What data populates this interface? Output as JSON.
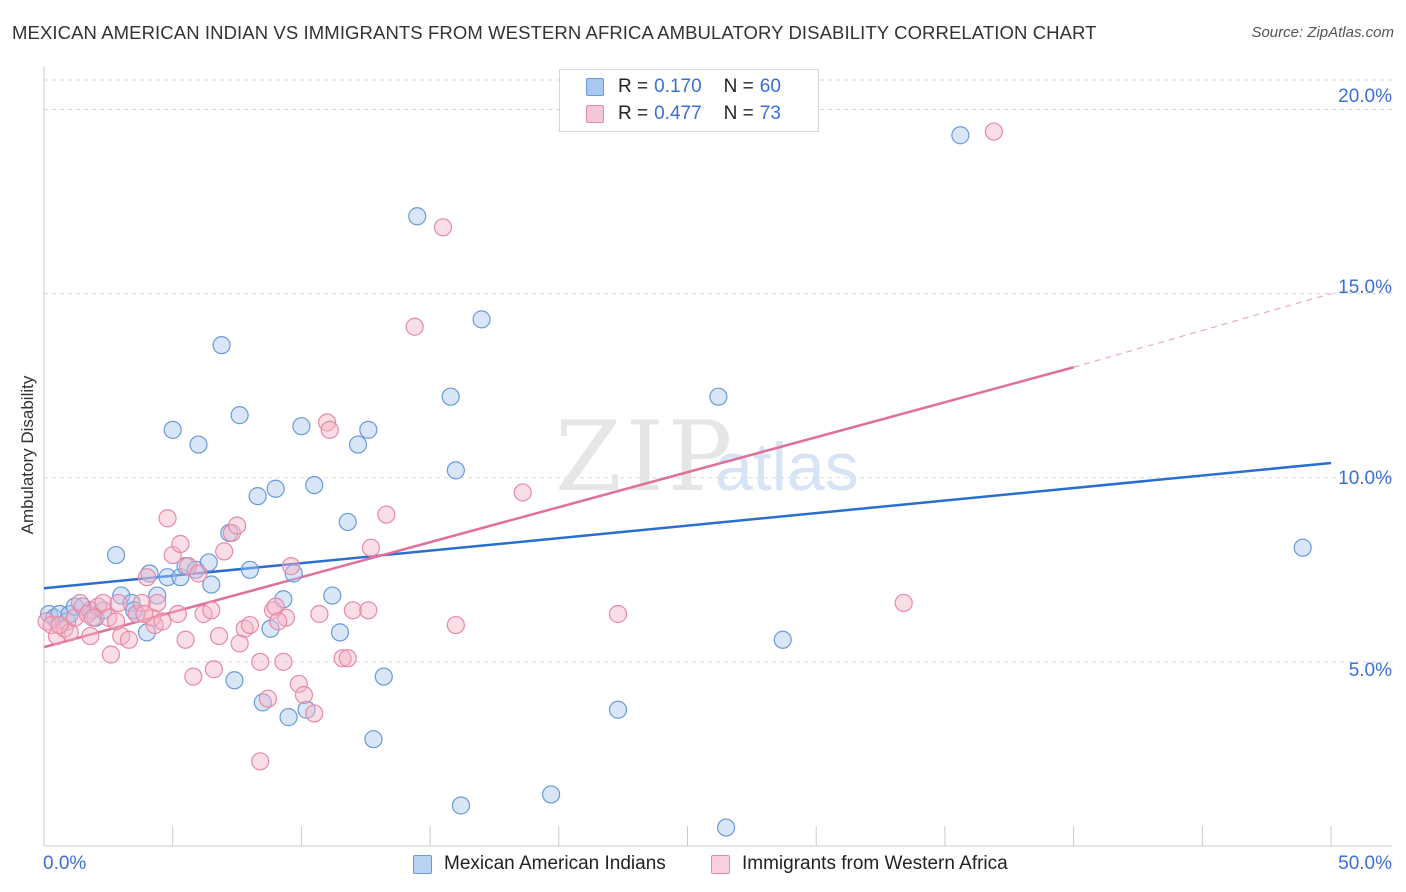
{
  "title": "MEXICAN AMERICAN INDIAN VS IMMIGRANTS FROM WESTERN AFRICA AMBULATORY DISABILITY CORRELATION CHART",
  "source": "Source: ZipAtlas.com",
  "watermark": {
    "zip": "ZIP",
    "atlas": "atlas"
  },
  "legend": {
    "rows": [
      {
        "r_label": "R =",
        "r_value": "0.170",
        "n_label": "N =",
        "n_value": "60"
      },
      {
        "r_label": "R =",
        "r_value": "0.477",
        "n_label": "N =",
        "n_value": "73"
      }
    ]
  },
  "colors": {
    "blue_fill": "#a8c8f0",
    "blue_stroke": "#6a9ad8",
    "blue_line": "#2a6fd0",
    "pink_fill": "#f5b6c8",
    "pink_stroke": "#e889a6",
    "pink_line": "#e0709a",
    "grid": "#d8d8d8",
    "tick_text": "#3b6fd4"
  },
  "chart_data": {
    "type": "scatter",
    "title": "MEXICAN AMERICAN INDIAN VS IMMIGRANTS FROM WESTERN AFRICA AMBULATORY DISABILITY CORRELATION CHART",
    "xlabel": "",
    "ylabel": "Ambulatory Disability",
    "xlim": [
      0,
      50
    ],
    "ylim": [
      0,
      20.8
    ],
    "x_tick_labels": [
      {
        "value": 0,
        "label": "0.0%"
      },
      {
        "value": 50,
        "label": "50.0%"
      }
    ],
    "y_ticks": [
      {
        "value": 5,
        "label": "5.0%"
      },
      {
        "value": 10,
        "label": "10.0%"
      },
      {
        "value": 15,
        "label": "15.0%"
      },
      {
        "value": 20,
        "label": "20.0%"
      }
    ],
    "x_minor_ticks": [
      0,
      5,
      10,
      15,
      20,
      25,
      30,
      35,
      40,
      45,
      50
    ],
    "grid": true,
    "legend_position": "top-center",
    "series": [
      {
        "name": "Mexican American Indians",
        "color": "blue",
        "r": 0.17,
        "n": 60,
        "trend": {
          "x0": 0,
          "y0": 7.0,
          "x1": 50,
          "y1": 10.4,
          "dashed_from": null
        },
        "points": [
          [
            0.2,
            6.3
          ],
          [
            0.4,
            6.2
          ],
          [
            0.6,
            6.3
          ],
          [
            0.9,
            6.1
          ],
          [
            1.0,
            6.3
          ],
          [
            1.2,
            6.5
          ],
          [
            1.8,
            6.4
          ],
          [
            2.0,
            6.2
          ],
          [
            2.3,
            6.4
          ],
          [
            2.8,
            7.9
          ],
          [
            3.0,
            6.8
          ],
          [
            3.4,
            6.6
          ],
          [
            3.6,
            6.3
          ],
          [
            4.0,
            5.8
          ],
          [
            4.1,
            7.4
          ],
          [
            4.4,
            6.8
          ],
          [
            4.8,
            7.3
          ],
          [
            5.0,
            11.3
          ],
          [
            5.3,
            7.3
          ],
          [
            5.5,
            7.6
          ],
          [
            5.9,
            7.5
          ],
          [
            6.0,
            10.9
          ],
          [
            6.4,
            7.7
          ],
          [
            6.5,
            7.1
          ],
          [
            6.9,
            13.6
          ],
          [
            7.2,
            8.5
          ],
          [
            7.4,
            4.5
          ],
          [
            7.6,
            11.7
          ],
          [
            8.0,
            7.5
          ],
          [
            8.3,
            9.5
          ],
          [
            8.5,
            3.9
          ],
          [
            8.8,
            5.9
          ],
          [
            9.0,
            9.7
          ],
          [
            9.3,
            6.7
          ],
          [
            9.5,
            3.5
          ],
          [
            9.7,
            7.4
          ],
          [
            10.0,
            11.4
          ],
          [
            10.2,
            3.7
          ],
          [
            10.5,
            9.8
          ],
          [
            11.2,
            6.8
          ],
          [
            11.5,
            5.8
          ],
          [
            11.8,
            8.8
          ],
          [
            12.2,
            10.9
          ],
          [
            12.6,
            11.3
          ],
          [
            12.8,
            2.9
          ],
          [
            13.2,
            4.6
          ],
          [
            14.5,
            17.1
          ],
          [
            15.8,
            12.2
          ],
          [
            16.0,
            10.2
          ],
          [
            16.2,
            1.1
          ],
          [
            17.0,
            14.3
          ],
          [
            19.7,
            1.4
          ],
          [
            22.3,
            3.7
          ],
          [
            26.2,
            12.2
          ],
          [
            26.5,
            0.5
          ],
          [
            28.7,
            5.6
          ],
          [
            35.6,
            19.3
          ],
          [
            48.9,
            8.1
          ],
          [
            3.5,
            6.4
          ],
          [
            1.5,
            6.5
          ]
        ]
      },
      {
        "name": "Immigrants from Western Africa",
        "color": "pink",
        "r": 0.477,
        "n": 73,
        "trend": {
          "x0": 0,
          "y0": 5.4,
          "x1": 40,
          "y1": 13.0,
          "dashed_from": 40,
          "dashed_to": 50,
          "dashed_y1": 15.0
        },
        "points": [
          [
            0.1,
            6.1
          ],
          [
            0.3,
            6.0
          ],
          [
            0.5,
            5.7
          ],
          [
            0.8,
            5.9
          ],
          [
            1.0,
            5.8
          ],
          [
            1.2,
            6.2
          ],
          [
            1.4,
            6.6
          ],
          [
            1.7,
            6.3
          ],
          [
            1.8,
            5.7
          ],
          [
            2.1,
            6.5
          ],
          [
            2.3,
            6.6
          ],
          [
            2.5,
            6.2
          ],
          [
            2.6,
            5.2
          ],
          [
            2.9,
            6.6
          ],
          [
            3.0,
            5.7
          ],
          [
            3.3,
            5.6
          ],
          [
            3.6,
            6.3
          ],
          [
            3.8,
            6.6
          ],
          [
            4.0,
            7.3
          ],
          [
            4.2,
            6.2
          ],
          [
            4.3,
            6.0
          ],
          [
            4.4,
            6.6
          ],
          [
            4.8,
            8.9
          ],
          [
            5.0,
            7.9
          ],
          [
            5.2,
            6.3
          ],
          [
            5.3,
            8.2
          ],
          [
            5.5,
            5.6
          ],
          [
            5.6,
            7.6
          ],
          [
            5.8,
            4.6
          ],
          [
            6.0,
            7.4
          ],
          [
            6.2,
            6.3
          ],
          [
            6.5,
            6.4
          ],
          [
            6.6,
            4.8
          ],
          [
            6.8,
            5.7
          ],
          [
            7.0,
            8.0
          ],
          [
            7.3,
            8.5
          ],
          [
            7.5,
            8.7
          ],
          [
            7.6,
            5.5
          ],
          [
            7.8,
            5.9
          ],
          [
            8.0,
            6.0
          ],
          [
            8.4,
            5.0
          ],
          [
            8.7,
            4.0
          ],
          [
            8.9,
            6.4
          ],
          [
            9.0,
            6.5
          ],
          [
            9.3,
            5.0
          ],
          [
            9.4,
            6.2
          ],
          [
            9.6,
            7.6
          ],
          [
            9.9,
            4.4
          ],
          [
            10.1,
            4.1
          ],
          [
            10.5,
            3.6
          ],
          [
            10.7,
            6.3
          ],
          [
            11.0,
            11.5
          ],
          [
            11.1,
            11.3
          ],
          [
            11.6,
            5.1
          ],
          [
            11.8,
            5.1
          ],
          [
            12.0,
            6.4
          ],
          [
            12.6,
            6.4
          ],
          [
            12.7,
            8.1
          ],
          [
            13.3,
            9.0
          ],
          [
            14.4,
            14.1
          ],
          [
            15.5,
            16.8
          ],
          [
            16.0,
            6.0
          ],
          [
            18.6,
            9.6
          ],
          [
            22.3,
            6.3
          ],
          [
            33.4,
            6.6
          ],
          [
            36.9,
            19.4
          ],
          [
            8.4,
            2.3
          ],
          [
            4.6,
            6.1
          ],
          [
            1.9,
            6.2
          ],
          [
            0.6,
            6.0
          ],
          [
            2.8,
            6.1
          ],
          [
            3.9,
            6.3
          ],
          [
            9.1,
            6.1
          ]
        ]
      }
    ]
  },
  "bottom_legend": [
    {
      "label": "Mexican American Indians"
    },
    {
      "label": "Immigrants from Western Africa"
    }
  ]
}
